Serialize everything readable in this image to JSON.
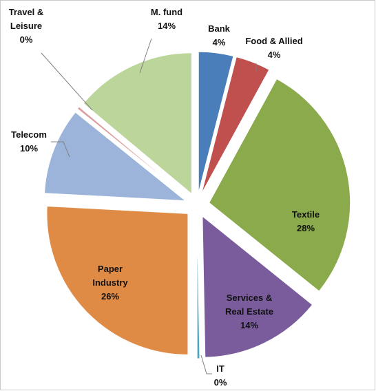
{
  "chart_data": {
    "type": "pie",
    "exploded": true,
    "title": "",
    "slices": [
      {
        "name": "Bank",
        "value": 4,
        "label": "4%",
        "color": "#4a7ebb"
      },
      {
        "name": "Food & Allied",
        "value": 4,
        "label": "4%",
        "color": "#c0504d"
      },
      {
        "name": "Textile",
        "value": 28,
        "label": "28%",
        "color": "#8aaa4c"
      },
      {
        "name": "Services & Real Estate",
        "value": 14,
        "label": "14%",
        "color": "#7a5c9c"
      },
      {
        "name": "IT",
        "value": 0.3,
        "label": "0%",
        "color": "#4aa6c0"
      },
      {
        "name": "Paper Industry",
        "value": 26,
        "label": "26%",
        "color": "#e08b45"
      },
      {
        "name": "Telecom",
        "value": 10,
        "label": "10%",
        "color": "#9db4da"
      },
      {
        "name": "Travel & Leisure",
        "value": 0.3,
        "label": "0%",
        "color": "#dc9e9e"
      },
      {
        "name": "M. fund",
        "value": 14,
        "label": "14%",
        "color": "#bcd59b"
      }
    ]
  }
}
